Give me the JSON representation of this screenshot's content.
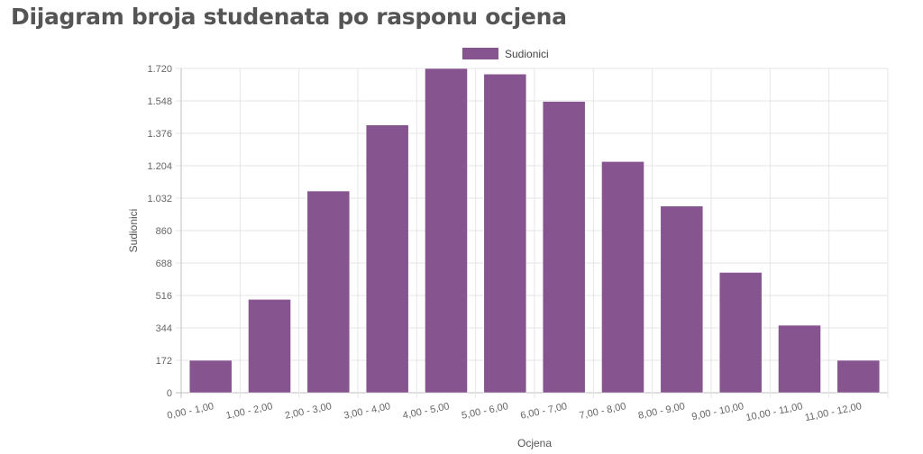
{
  "page": {
    "title": "Dijagram broja studenata po rasponu ocjena"
  },
  "chart_data": {
    "type": "bar",
    "title": "",
    "xlabel": "Ocjena",
    "ylabel": "Sudionici",
    "categories": [
      "0,00 - 1,00",
      "1,00 - 2,00",
      "2,00 - 3,00",
      "3,00 - 4,00",
      "4,00 - 5,00",
      "5,00 - 6,00",
      "6,00 - 7,00",
      "7,00 - 8,00",
      "8,00 - 9,00",
      "9,00 - 10,00",
      "10,00 - 11,00",
      "11,00 - 12,00"
    ],
    "series": [
      {
        "name": "Sudionici",
        "color": "#86548f",
        "values": [
          172,
          495,
          1070,
          1420,
          1720,
          1690,
          1545,
          1226,
          990,
          638,
          358,
          172
        ]
      }
    ],
    "ylim": [
      0,
      1720
    ],
    "yticks": [
      0,
      172,
      344,
      516,
      688,
      860,
      1032,
      1204,
      1376,
      1548,
      1720
    ],
    "ytick_labels": [
      "0",
      "172",
      "344",
      "516",
      "688",
      "860",
      "1.032",
      "1.204",
      "1.376",
      "1.548",
      "1.720"
    ],
    "grid": true,
    "legend_position": "top-center"
  }
}
